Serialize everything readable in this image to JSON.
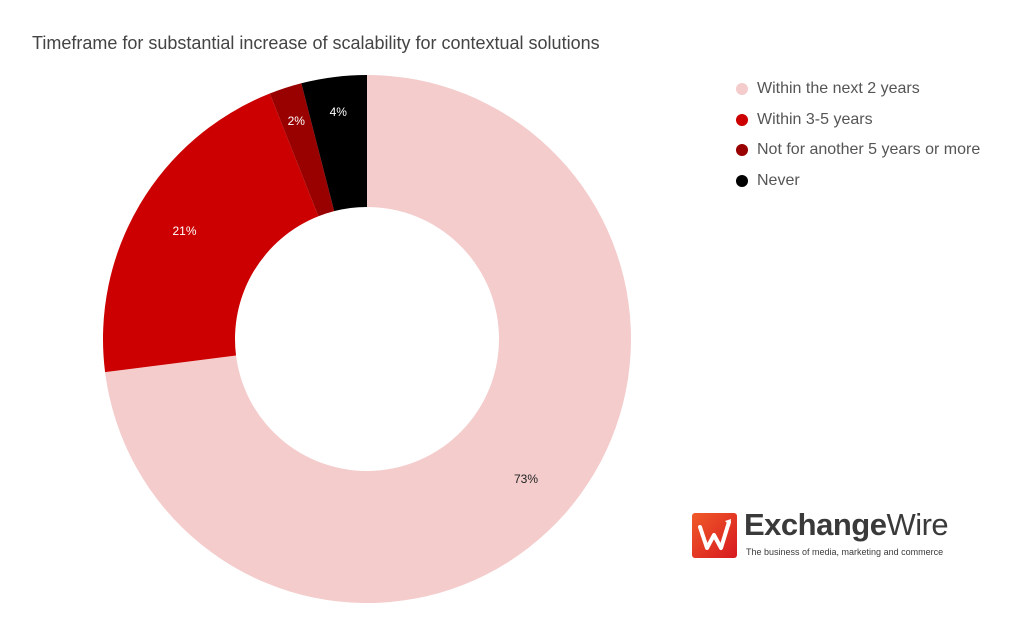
{
  "chart_data": {
    "type": "pie",
    "title": "Timeframe for substantial increase of scalability for contextual solutions",
    "donut": true,
    "legend_position": "right",
    "categories": [
      "Within the next 2 years",
      "Within 3-5 years",
      "Not for another 5 years or more",
      "Never"
    ],
    "values": [
      73,
      21,
      2,
      4
    ],
    "labels": [
      "73%",
      "21%",
      "2%",
      "4%"
    ],
    "colors": [
      "#f4cccc",
      "#cc0000",
      "#990000",
      "#000000"
    ],
    "label_colors": [
      "#222222",
      "#ffffff",
      "#ffffff",
      "#ffffff"
    ]
  },
  "logo": {
    "brand": "Exchange",
    "brand_accent": "Wire",
    "tagline": "The business of media, marketing and commerce",
    "colors": [
      "#f05a28",
      "#d71920"
    ]
  }
}
